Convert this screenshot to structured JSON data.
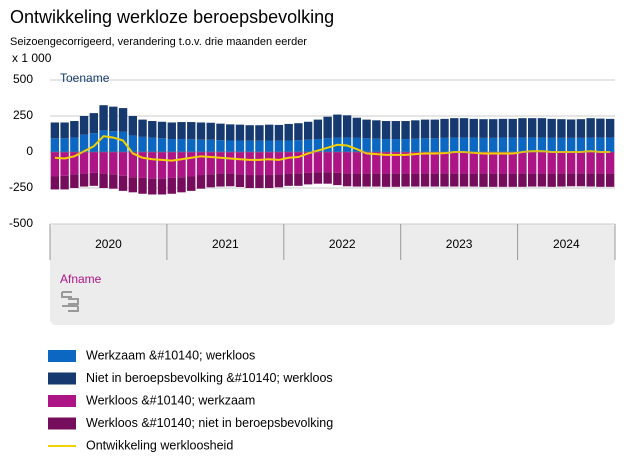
{
  "chart_data": {
    "type": "bar",
    "stacked": true,
    "title": "Ontwikkeling werkloze beroepsbevolking",
    "subtitle": "Seizoengecorrigeerd, verandering t.o.v. drie maanden eerder",
    "unit_label": "x 1 000",
    "annotations": [
      "Toename",
      "Afname"
    ],
    "categories": [
      "2020",
      null,
      null,
      null,
      null,
      null,
      null,
      null,
      null,
      null,
      null,
      null,
      "2021",
      null,
      null,
      null,
      null,
      null,
      null,
      null,
      null,
      null,
      null,
      null,
      "2022",
      null,
      null,
      null,
      null,
      null,
      null,
      null,
      null,
      null,
      null,
      null,
      "2023",
      null,
      null,
      null,
      null,
      null,
      null,
      null,
      null,
      null,
      null,
      null,
      "2024",
      null,
      null,
      null,
      null,
      null,
      null,
      null,
      null,
      null
    ],
    "ylim": [
      -500,
      500
    ],
    "yticks": [
      -500,
      -250,
      0,
      250,
      500
    ],
    "grid": true,
    "series": [
      {
        "name": "Werkzaam &#10140; werkloos",
        "color": "#0b67c2",
        "type": "bar",
        "values": [
          95,
          95,
          100,
          120,
          130,
          150,
          145,
          140,
          115,
          105,
          100,
          95,
          90,
          90,
          88,
          85,
          85,
          82,
          80,
          80,
          78,
          78,
          80,
          78,
          80,
          82,
          85,
          90,
          95,
          100,
          100,
          98,
          95,
          92,
          90,
          90,
          90,
          92,
          95,
          95,
          98,
          100,
          100,
          100,
          98,
          98,
          100,
          100,
          100,
          100,
          100,
          98,
          98,
          98,
          98,
          100,
          100,
          100
        ]
      },
      {
        "name": "Niet in beroepsbevolking &#10140; werkloos",
        "color": "#163a70",
        "type": "bar",
        "values": [
          110,
          110,
          115,
          130,
          140,
          175,
          170,
          165,
          135,
          120,
          115,
          115,
          115,
          118,
          120,
          120,
          118,
          115,
          112,
          110,
          108,
          108,
          110,
          110,
          115,
          118,
          125,
          135,
          150,
          160,
          155,
          140,
          130,
          128,
          125,
          125,
          125,
          128,
          130,
          130,
          132,
          135,
          135,
          130,
          130,
          130,
          130,
          130,
          135,
          135,
          135,
          132,
          130,
          128,
          130,
          135,
          132,
          130
        ]
      },
      {
        "name": "Werkloos &#10140; werkzaam",
        "color": "#ad1486",
        "type": "bar",
        "values": [
          -170,
          -165,
          -155,
          -150,
          -145,
          -150,
          -155,
          -165,
          -175,
          -180,
          -185,
          -185,
          -180,
          -175,
          -170,
          -160,
          -155,
          -150,
          -150,
          -155,
          -160,
          -160,
          -160,
          -155,
          -150,
          -150,
          -145,
          -140,
          -140,
          -145,
          -150,
          -150,
          -150,
          -150,
          -150,
          -150,
          -150,
          -150,
          -150,
          -150,
          -150,
          -150,
          -150,
          -150,
          -150,
          -150,
          -150,
          -150,
          -150,
          -150,
          -150,
          -150,
          -150,
          -148,
          -148,
          -150,
          -150,
          -150
        ]
      },
      {
        "name": "Werkloos &#10140; niet in beroepsbevolking",
        "color": "#760c5c",
        "type": "bar",
        "values": [
          -90,
          -95,
          -95,
          -90,
          -90,
          -100,
          -100,
          -105,
          -105,
          -110,
          -110,
          -110,
          -110,
          -105,
          -100,
          -95,
          -90,
          -90,
          -88,
          -88,
          -90,
          -90,
          -90,
          -90,
          -85,
          -85,
          -80,
          -80,
          -80,
          -85,
          -88,
          -90,
          -90,
          -90,
          -92,
          -92,
          -90,
          -90,
          -90,
          -90,
          -90,
          -90,
          -90,
          -90,
          -92,
          -92,
          -92,
          -92,
          -92,
          -90,
          -90,
          -92,
          -90,
          -90,
          -90,
          -90,
          -92,
          -92
        ]
      },
      {
        "name": "Ontwikkeling werkloosheid",
        "color": "#f2d100",
        "type": "line",
        "values": [
          -40,
          -45,
          -30,
          5,
          40,
          110,
          100,
          80,
          -10,
          -40,
          -50,
          -55,
          -60,
          -50,
          -40,
          -30,
          -35,
          -40,
          -45,
          -50,
          -55,
          -55,
          -50,
          -55,
          -40,
          -35,
          -10,
          10,
          30,
          50,
          45,
          20,
          -10,
          -15,
          -20,
          -20,
          -20,
          -15,
          -10,
          -10,
          -8,
          0,
          0,
          -5,
          -10,
          -10,
          -10,
          -10,
          0,
          5,
          5,
          0,
          0,
          0,
          0,
          5,
          0,
          0
        ]
      }
    ]
  }
}
